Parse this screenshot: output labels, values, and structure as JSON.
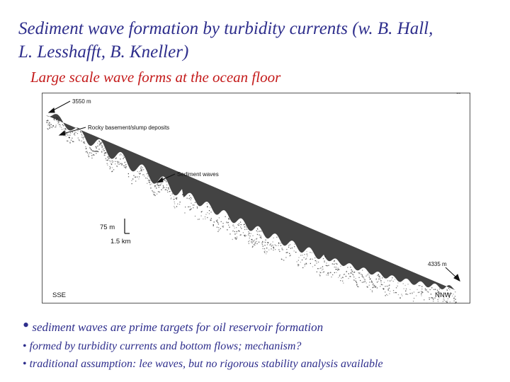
{
  "title": {
    "line1": "Sediment wave formation by turbidity currents (w. B. Hall,",
    "line2": "L. Lesshafft, B. Kneller)"
  },
  "subtitle": "Large scale wave forms at the ocean floor",
  "figure": {
    "label_depth_top": "3550 m",
    "label_rocky": "Rocky basement/slump deposits",
    "label_waves": "Sediment waves",
    "scale_vertical": "75 m",
    "scale_horizontal": "1.5 km",
    "label_depth_bottom": "4335 m",
    "label_left_direction": "SSE",
    "label_right_direction": "NNW"
  },
  "bullets": [
    "sediment waves are prime targets for oil reservoir formation",
    "formed by turbidity currents and bottom flows; mechanism?",
    "traditional assumption: lee waves, but no rigorous stability analysis available"
  ],
  "bullet_marker": "•",
  "colors": {
    "title": "#2e2e8c",
    "subtitle": "#c41b1b",
    "bullets": "#2e2e8c",
    "figure_frame": "#555555",
    "seafloor": "#1a1a1a"
  }
}
